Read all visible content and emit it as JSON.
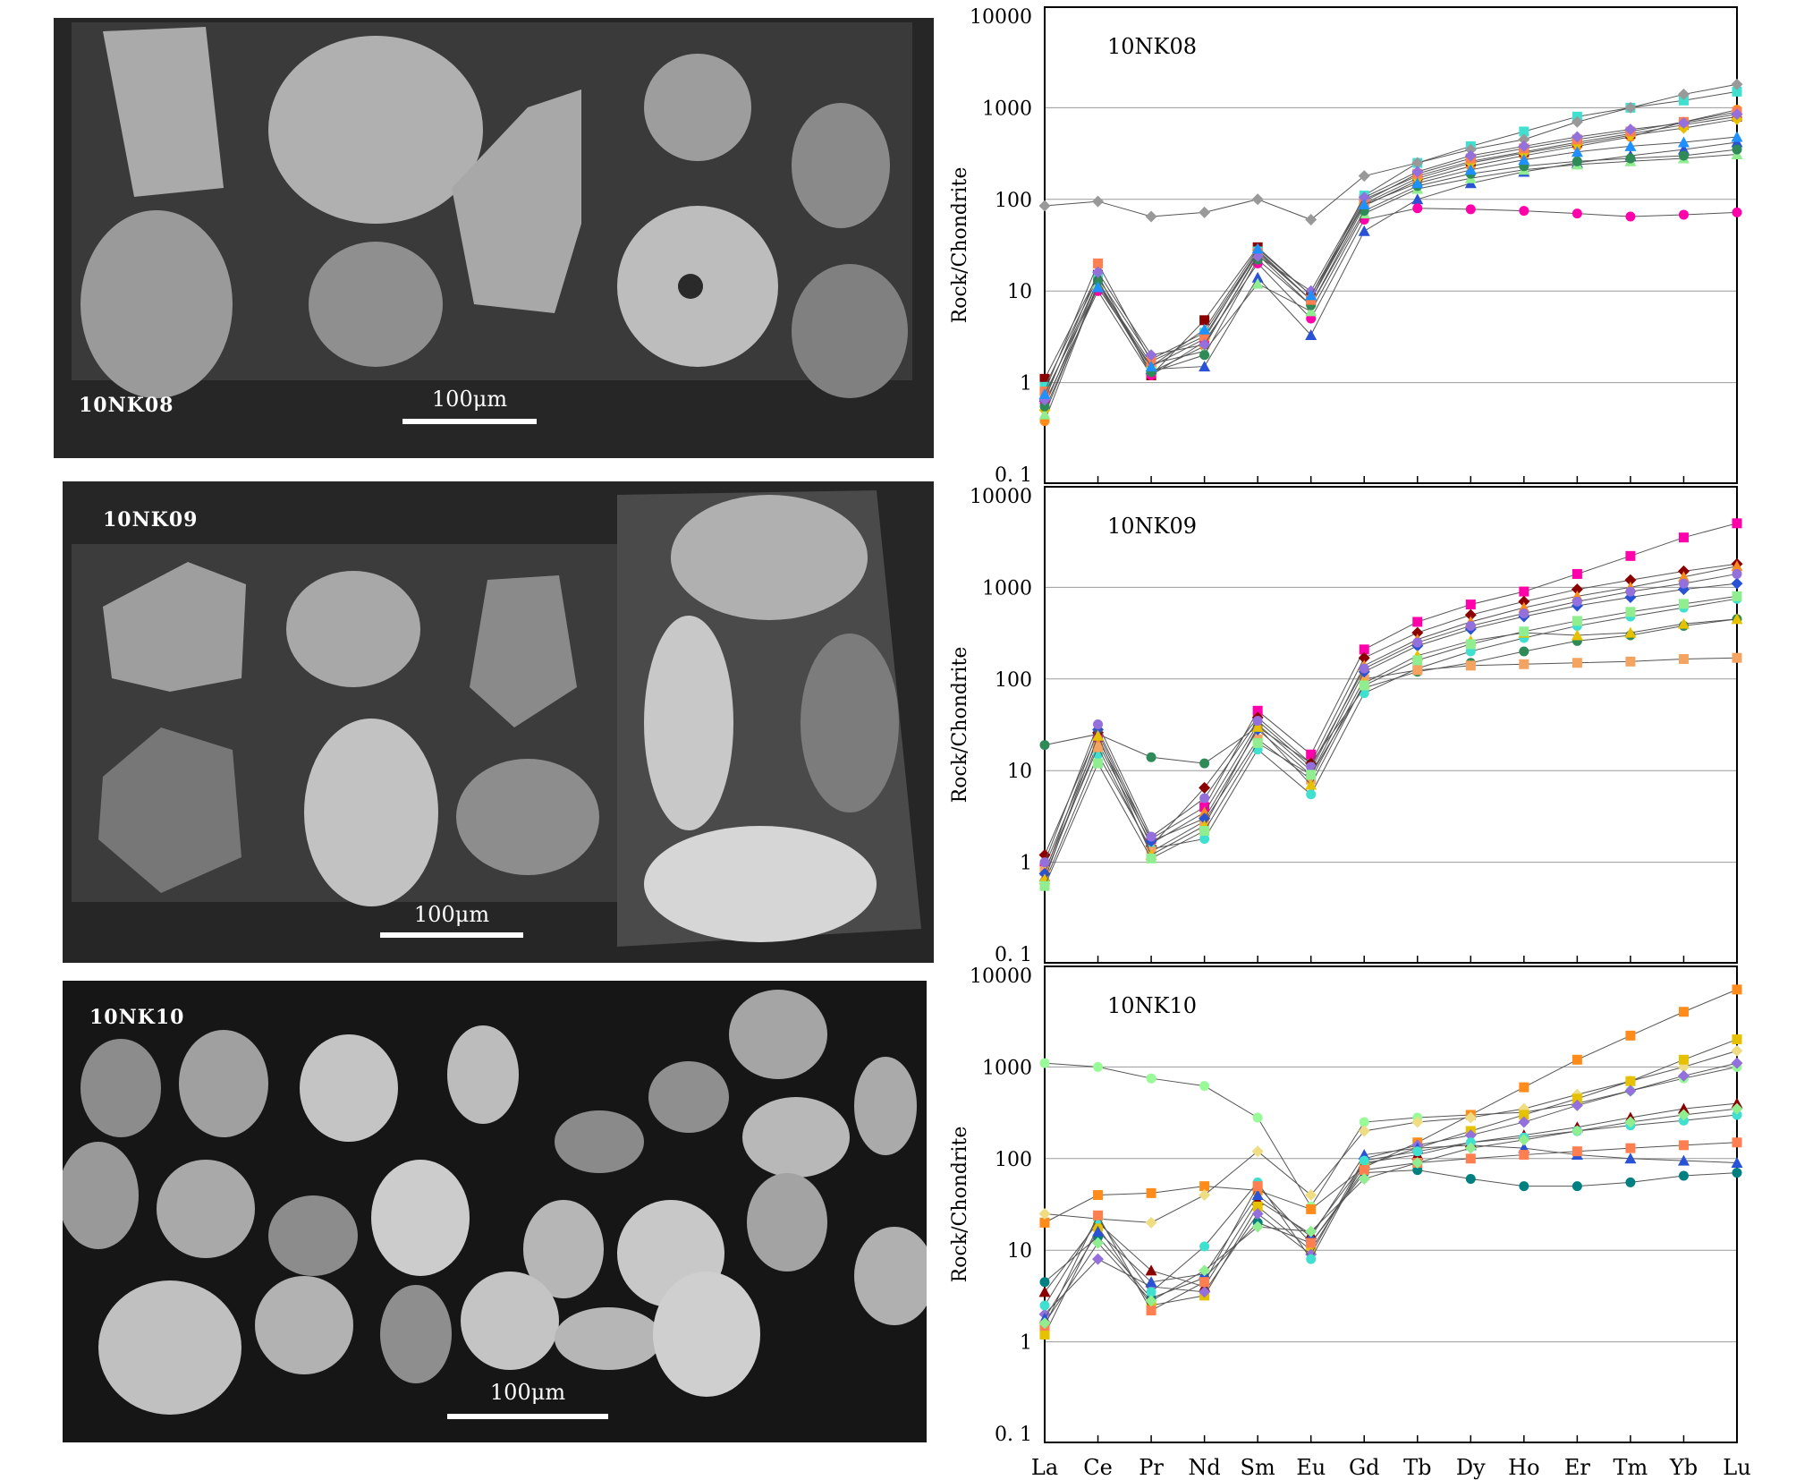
{
  "cl_images": [
    {
      "sample": "10NK08",
      "scale_label": "100μm"
    },
    {
      "sample": "10NK09",
      "scale_label": "100μm"
    },
    {
      "sample": "10NK10",
      "scale_label": "100μm"
    }
  ],
  "chart_data": [
    {
      "type": "line",
      "title": "10NK08",
      "ylabel": "Rock/Chondrite",
      "yscale": "log",
      "ylim": [
        0.1,
        10000
      ],
      "yticks": [
        "0. 1",
        "1",
        "10",
        "100",
        "1000",
        "10000"
      ],
      "categories": [
        "La",
        "Ce",
        "Pr",
        "Nd",
        "Sm",
        "Eu",
        "Gd",
        "Tb",
        "Dy",
        "Ho",
        "Er",
        "Tm",
        "Yb",
        "Lu"
      ],
      "grid": true,
      "series": [
        {
          "color": "#ff8c1a",
          "values": [
            0.38,
            12,
            1.3,
            2.5,
            25,
            7,
            85,
            160,
            230,
            300,
            380,
            480,
            700,
            950
          ]
        },
        {
          "color": "#8b0000",
          "values": [
            1.1,
            15,
            1.2,
            4.8,
            30,
            9,
            100,
            180,
            260,
            330,
            420,
            520,
            650,
            800
          ]
        },
        {
          "color": "#e5c100",
          "values": [
            0.5,
            11,
            1.5,
            3,
            28,
            8,
            90,
            170,
            250,
            320,
            400,
            500,
            600,
            750
          ]
        },
        {
          "color": "#2a52d4",
          "values": [
            0.7,
            13,
            1.4,
            1.5,
            14,
            3.3,
            45,
            100,
            150,
            200,
            250,
            300,
            350,
            420
          ]
        },
        {
          "color": "#ff00aa",
          "values": [
            0.6,
            10,
            1.2,
            2.8,
            20,
            5,
            60,
            80,
            78,
            75,
            70,
            65,
            68,
            72
          ]
        },
        {
          "color": "#40e0d0",
          "values": [
            0.9,
            14,
            1.8,
            3.5,
            27,
            8,
            110,
            250,
            380,
            550,
            800,
            1000,
            1200,
            1500
          ]
        },
        {
          "color": "#999999",
          "values": [
            85,
            95,
            65,
            72,
            100,
            60,
            180,
            250,
            350,
            450,
            700,
            1000,
            1400,
            1800
          ]
        },
        {
          "color": "#90ee90",
          "values": [
            0.45,
            12,
            1.6,
            2.2,
            12,
            6,
            70,
            130,
            170,
            210,
            240,
            260,
            280,
            310
          ]
        },
        {
          "color": "#2e8b57",
          "values": [
            0.55,
            13,
            1.3,
            2,
            22,
            7,
            75,
            140,
            190,
            230,
            260,
            280,
            300,
            350
          ]
        },
        {
          "color": "#ff7f50",
          "values": [
            0.8,
            20,
            1.7,
            3.2,
            26,
            8,
            95,
            190,
            280,
            360,
            450,
            550,
            700,
            900
          ]
        },
        {
          "color": "#9370db",
          "values": [
            0.65,
            16,
            2,
            2.6,
            24,
            10,
            105,
            200,
            300,
            380,
            480,
            580,
            680,
            850
          ]
        },
        {
          "color": "#1e90ff",
          "values": [
            0.75,
            11,
            1.5,
            3.8,
            29,
            9,
            88,
            150,
            210,
            270,
            330,
            380,
            420,
            480
          ]
        }
      ]
    },
    {
      "type": "line",
      "title": "10NK09",
      "ylabel": "Rock/Chondrite",
      "yscale": "log",
      "ylim": [
        0.1,
        10000
      ],
      "yticks": [
        "0. 1",
        "1",
        "10",
        "100",
        "1000",
        "10000"
      ],
      "categories": [
        "La",
        "Ce",
        "Pr",
        "Nd",
        "Sm",
        "Eu",
        "Gd",
        "Tb",
        "Dy",
        "Ho",
        "Er",
        "Tm",
        "Yb",
        "Lu"
      ],
      "grid": true,
      "series": [
        {
          "color": "#2e8b57",
          "values": [
            19,
            25,
            14,
            12,
            30,
            12,
            80,
            120,
            150,
            200,
            260,
            300,
            380,
            450
          ]
        },
        {
          "color": "#ff00aa",
          "values": [
            0.9,
            22,
            1.8,
            4,
            45,
            15,
            210,
            420,
            650,
            900,
            1400,
            2200,
            3500,
            5000
          ]
        },
        {
          "color": "#8b0000",
          "values": [
            1.2,
            26,
            1.5,
            6.5,
            38,
            12,
            170,
            320,
            500,
            700,
            950,
            1200,
            1500,
            1800
          ]
        },
        {
          "color": "#ff8c1a",
          "values": [
            0.7,
            20,
            1.6,
            3.5,
            32,
            10,
            140,
            270,
            420,
            600,
            800,
            1000,
            1300,
            1700
          ]
        },
        {
          "color": "#40e0d0",
          "values": [
            0.6,
            15,
            1.4,
            1.8,
            17,
            5.5,
            70,
            130,
            200,
            280,
            380,
            480,
            600,
            750
          ]
        },
        {
          "color": "#f4a460",
          "values": [
            0.8,
            18,
            1.3,
            2.8,
            22,
            8,
            100,
            125,
            140,
            145,
            150,
            155,
            165,
            170
          ]
        },
        {
          "color": "#2a52d4",
          "values": [
            0.75,
            28,
            1.7,
            3,
            28,
            9,
            120,
            230,
            350,
            480,
            630,
            780,
            950,
            1100
          ]
        },
        {
          "color": "#e5c100",
          "values": [
            0.65,
            24,
            1.2,
            2.5,
            30,
            7,
            90,
            180,
            260,
            320,
            300,
            320,
            400,
            450
          ]
        },
        {
          "color": "#9370db",
          "values": [
            1,
            32,
            1.9,
            5,
            35,
            11,
            130,
            250,
            380,
            520,
            700,
            900,
            1100,
            1400
          ]
        },
        {
          "color": "#90ee90",
          "values": [
            0.55,
            12,
            1.1,
            2.2,
            20,
            9,
            85,
            160,
            240,
            330,
            430,
            540,
            660,
            800
          ]
        }
      ]
    },
    {
      "type": "line",
      "title": "10NK10",
      "ylabel": "Rock/Chondrite",
      "yscale": "log",
      "ylim": [
        0.1,
        10000
      ],
      "yticks": [
        "0. 1",
        "1",
        "10",
        "100",
        "1000",
        "10000"
      ],
      "categories": [
        "La",
        "Ce",
        "Pr",
        "Nd",
        "Sm",
        "Eu",
        "Gd",
        "Tb",
        "Dy",
        "Ho",
        "Er",
        "Tm",
        "Yb",
        "Lu"
      ],
      "grid": true,
      "series": [
        {
          "color": "#98fb98",
          "values": [
            1100,
            1000,
            750,
            620,
            280,
            30,
            250,
            280,
            300,
            320,
            400,
            550,
            750,
            1000
          ]
        },
        {
          "color": "#ff8c1a",
          "values": [
            20,
            40,
            42,
            50,
            45,
            28,
            80,
            150,
            300,
            600,
            1200,
            2200,
            4000,
            7000
          ]
        },
        {
          "color": "#eedd82",
          "values": [
            25,
            22,
            20,
            40,
            120,
            40,
            200,
            250,
            280,
            350,
            500,
            700,
            1000,
            1500
          ]
        },
        {
          "color": "#8b0000",
          "values": [
            3.5,
            20,
            6,
            4,
            35,
            15,
            90,
            110,
            150,
            180,
            220,
            280,
            350,
            400
          ]
        },
        {
          "color": "#008080",
          "values": [
            4.5,
            14,
            3,
            5,
            20,
            12,
            70,
            75,
            60,
            50,
            50,
            55,
            65,
            70
          ]
        },
        {
          "color": "#e5c100",
          "values": [
            1.2,
            18,
            2.5,
            3.2,
            30,
            10,
            85,
            130,
            200,
            300,
            450,
            700,
            1200,
            2000
          ]
        },
        {
          "color": "#9370db",
          "values": [
            2,
            8,
            4,
            3.5,
            25,
            9,
            100,
            140,
            180,
            250,
            380,
            550,
            800,
            1100
          ]
        },
        {
          "color": "#2a52d4",
          "values": [
            1.8,
            16,
            4.5,
            5.5,
            40,
            14,
            110,
            130,
            140,
            130,
            110,
            100,
            95,
            90
          ]
        },
        {
          "color": "#40e0d0",
          "values": [
            2.5,
            22,
            3.5,
            11,
            55,
            8,
            95,
            120,
            150,
            170,
            200,
            230,
            260,
            300
          ]
        },
        {
          "color": "#ff7f50",
          "values": [
            1.5,
            24,
            2.2,
            4.5,
            50,
            12,
            75,
            90,
            100,
            110,
            120,
            130,
            140,
            150
          ]
        },
        {
          "color": "#90ee90",
          "values": [
            1.6,
            12,
            2.8,
            6,
            18,
            16,
            60,
            90,
            130,
            160,
            200,
            250,
            300,
            350
          ]
        }
      ]
    }
  ]
}
